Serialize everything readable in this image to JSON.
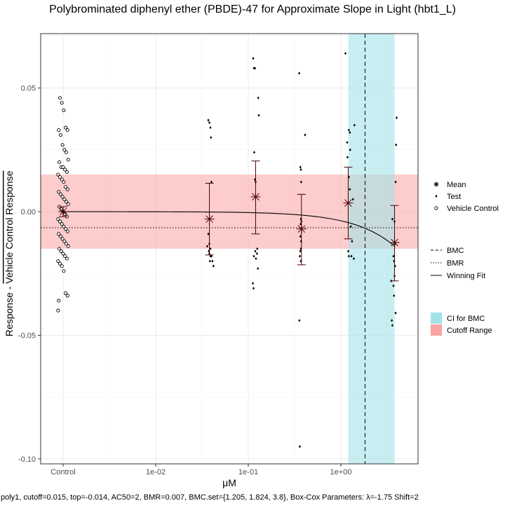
{
  "chart_data": {
    "type": "scatter",
    "title": "Polybrominated diphenyl ether (PBDE)-47 for Approximate Slope in Light (hbt1_L)",
    "xlabel": "μM",
    "ylabel_prefix": "Response - ",
    "ylabel_overline": "Vehicle Control Response",
    "x_scale": "log10",
    "x_ticks": [
      {
        "label": "Control",
        "value": "control"
      },
      {
        "label": "1e-02",
        "value": 0.01
      },
      {
        "label": "1e-01",
        "value": 0.1
      },
      {
        "label": "1e+00",
        "value": 1
      }
    ],
    "y_ticks": [
      0.05,
      0.0,
      -0.05,
      -0.1
    ],
    "y_tick_labels": [
      "0.05",
      "0.00",
      "-0.05",
      "-0.10"
    ],
    "ylim": [
      -0.102,
      0.072
    ],
    "grid": true,
    "cutoff_range": [
      -0.015,
      0.015
    ],
    "bmr_line": -0.0065,
    "bmc": 1.824,
    "bmc_ci": [
      1.205,
      3.8
    ],
    "colors": {
      "ci_fill": "#a3e3e8",
      "cutoff_fill": "#fca3a3",
      "points": "#000000",
      "mean": "#4a0000"
    },
    "mean_points": [
      {
        "x": 0.038,
        "mean": -0.003,
        "lo": -0.0175,
        "hi": 0.0115
      },
      {
        "x": 0.12,
        "mean": 0.006,
        "lo": -0.009,
        "hi": 0.0205
      },
      {
        "x": 0.375,
        "mean": -0.007,
        "lo": -0.0215,
        "hi": 0.007
      },
      {
        "x": 1.2,
        "mean": 0.0035,
        "lo": -0.011,
        "hi": 0.018
      },
      {
        "x": 3.8,
        "mean": -0.0125,
        "lo": -0.028,
        "hi": 0.0025
      }
    ],
    "control_mean": {
      "mean": 0.0,
      "lo": -0.002,
      "hi": 0.002
    },
    "test_points": [
      [
        0.037,
        0.037
      ],
      [
        0.038,
        0.036
      ],
      [
        0.039,
        0.034
      ],
      [
        0.0395,
        0.03
      ],
      [
        0.04,
        0.012
      ],
      [
        0.037,
        -0.009
      ],
      [
        0.038,
        -0.013
      ],
      [
        0.036,
        -0.014
      ],
      [
        0.039,
        -0.015
      ],
      [
        0.0375,
        -0.016
      ],
      [
        0.038,
        -0.017
      ],
      [
        0.039,
        -0.018
      ],
      [
        0.04,
        -0.018
      ],
      [
        0.041,
        -0.02
      ],
      [
        0.0385,
        -0.02
      ],
      [
        0.042,
        -0.022
      ],
      [
        0.113,
        0.062
      ],
      [
        0.115,
        0.058
      ],
      [
        0.118,
        0.058
      ],
      [
        0.128,
        0.046
      ],
      [
        0.13,
        0.039
      ],
      [
        0.116,
        0.024
      ],
      [
        0.118,
        0.013
      ],
      [
        0.12,
        0.012
      ],
      [
        0.125,
        -0.015
      ],
      [
        0.119,
        -0.016
      ],
      [
        0.124,
        -0.017
      ],
      [
        0.115,
        -0.018
      ],
      [
        0.121,
        -0.019
      ],
      [
        0.127,
        -0.023
      ],
      [
        0.112,
        -0.029
      ],
      [
        0.114,
        -0.031
      ],
      [
        0.355,
        0.056
      ],
      [
        0.41,
        0.031
      ],
      [
        0.365,
        0.018
      ],
      [
        0.37,
        0.017
      ],
      [
        0.372,
        0.012
      ],
      [
        0.37,
        -0.003
      ],
      [
        0.375,
        -0.004
      ],
      [
        0.368,
        -0.005
      ],
      [
        0.365,
        -0.01
      ],
      [
        0.372,
        -0.012
      ],
      [
        0.37,
        -0.015
      ],
      [
        0.365,
        -0.016
      ],
      [
        0.36,
        -0.018
      ],
      [
        0.37,
        -0.02
      ],
      [
        0.356,
        -0.044
      ],
      [
        0.36,
        -0.095
      ],
      [
        1.12,
        0.064
      ],
      [
        1.22,
        0.033
      ],
      [
        1.25,
        0.032
      ],
      [
        1.4,
        0.035
      ],
      [
        1.17,
        0.028
      ],
      [
        1.26,
        0.025
      ],
      [
        1.18,
        0.022
      ],
      [
        1.22,
        0.014
      ],
      [
        1.25,
        0.009
      ],
      [
        1.35,
        0.005
      ],
      [
        1.28,
        -0.006
      ],
      [
        1.32,
        -0.012
      ],
      [
        1.2,
        -0.016
      ],
      [
        1.22,
        -0.018
      ],
      [
        1.3,
        -0.018
      ],
      [
        1.38,
        -0.019
      ],
      [
        4.0,
        0.038
      ],
      [
        3.95,
        0.027
      ],
      [
        3.9,
        0.012
      ],
      [
        3.6,
        -0.003
      ],
      [
        3.8,
        -0.004
      ],
      [
        3.85,
        -0.013
      ],
      [
        3.7,
        -0.018
      ],
      [
        3.75,
        -0.02
      ],
      [
        3.85,
        -0.022
      ],
      [
        3.8,
        -0.026
      ],
      [
        3.5,
        -0.028
      ],
      [
        3.7,
        -0.03
      ],
      [
        3.75,
        -0.034
      ],
      [
        3.9,
        -0.041
      ],
      [
        3.55,
        -0.044
      ],
      [
        3.6,
        -0.046
      ]
    ],
    "control_points": [
      -0.04,
      0.046,
      0.044,
      0.041,
      0.034,
      0.033,
      0.033,
      0.031,
      0.027,
      0.025,
      0.024,
      0.021,
      0.02,
      0.018,
      0.018,
      0.017,
      0.016,
      0.015,
      0.014,
      0.013,
      0.012,
      0.01,
      0.009,
      0.008,
      0.007,
      0.006,
      0.005,
      0.004,
      0.003,
      0.002,
      0.001,
      0.0,
      -0.001,
      -0.002,
      -0.003,
      -0.004,
      -0.005,
      -0.006,
      -0.007,
      -0.008,
      -0.009,
      -0.01,
      -0.011,
      -0.012,
      -0.013,
      -0.014,
      -0.015,
      -0.016,
      -0.017,
      -0.018,
      -0.019,
      -0.02,
      -0.021,
      -0.022,
      -0.024,
      -0.033,
      -0.034,
      -0.036
    ],
    "fit_curve": {
      "model": "poly1",
      "top": -0.014,
      "x_range": [
        0.0,
        3.8
      ]
    },
    "legend_shapes": [
      {
        "symbol": "✱",
        "label": "Mean"
      },
      {
        "symbol": "●",
        "label": "Test"
      },
      {
        "symbol": "○",
        "label": "Vehicle Control"
      }
    ],
    "legend_lines": [
      {
        "dash": "dashed",
        "label": "BMC"
      },
      {
        "dash": "dotted",
        "label": "BMR"
      },
      {
        "dash": "solid",
        "label": "Winning Fit"
      }
    ],
    "legend_fills": [
      {
        "color": "#a3e3e8",
        "label": "CI for BMC"
      },
      {
        "color": "#fca3a3",
        "label": "Cutoff Range"
      }
    ],
    "footer": "poly1, cutoff=0.015, top=-0.014, AC50=2, BMR=0.007, BMC.set={1.205, 1.824, 3.8}, Box-Cox Parameters: λ=-1.75 Shift=2"
  }
}
